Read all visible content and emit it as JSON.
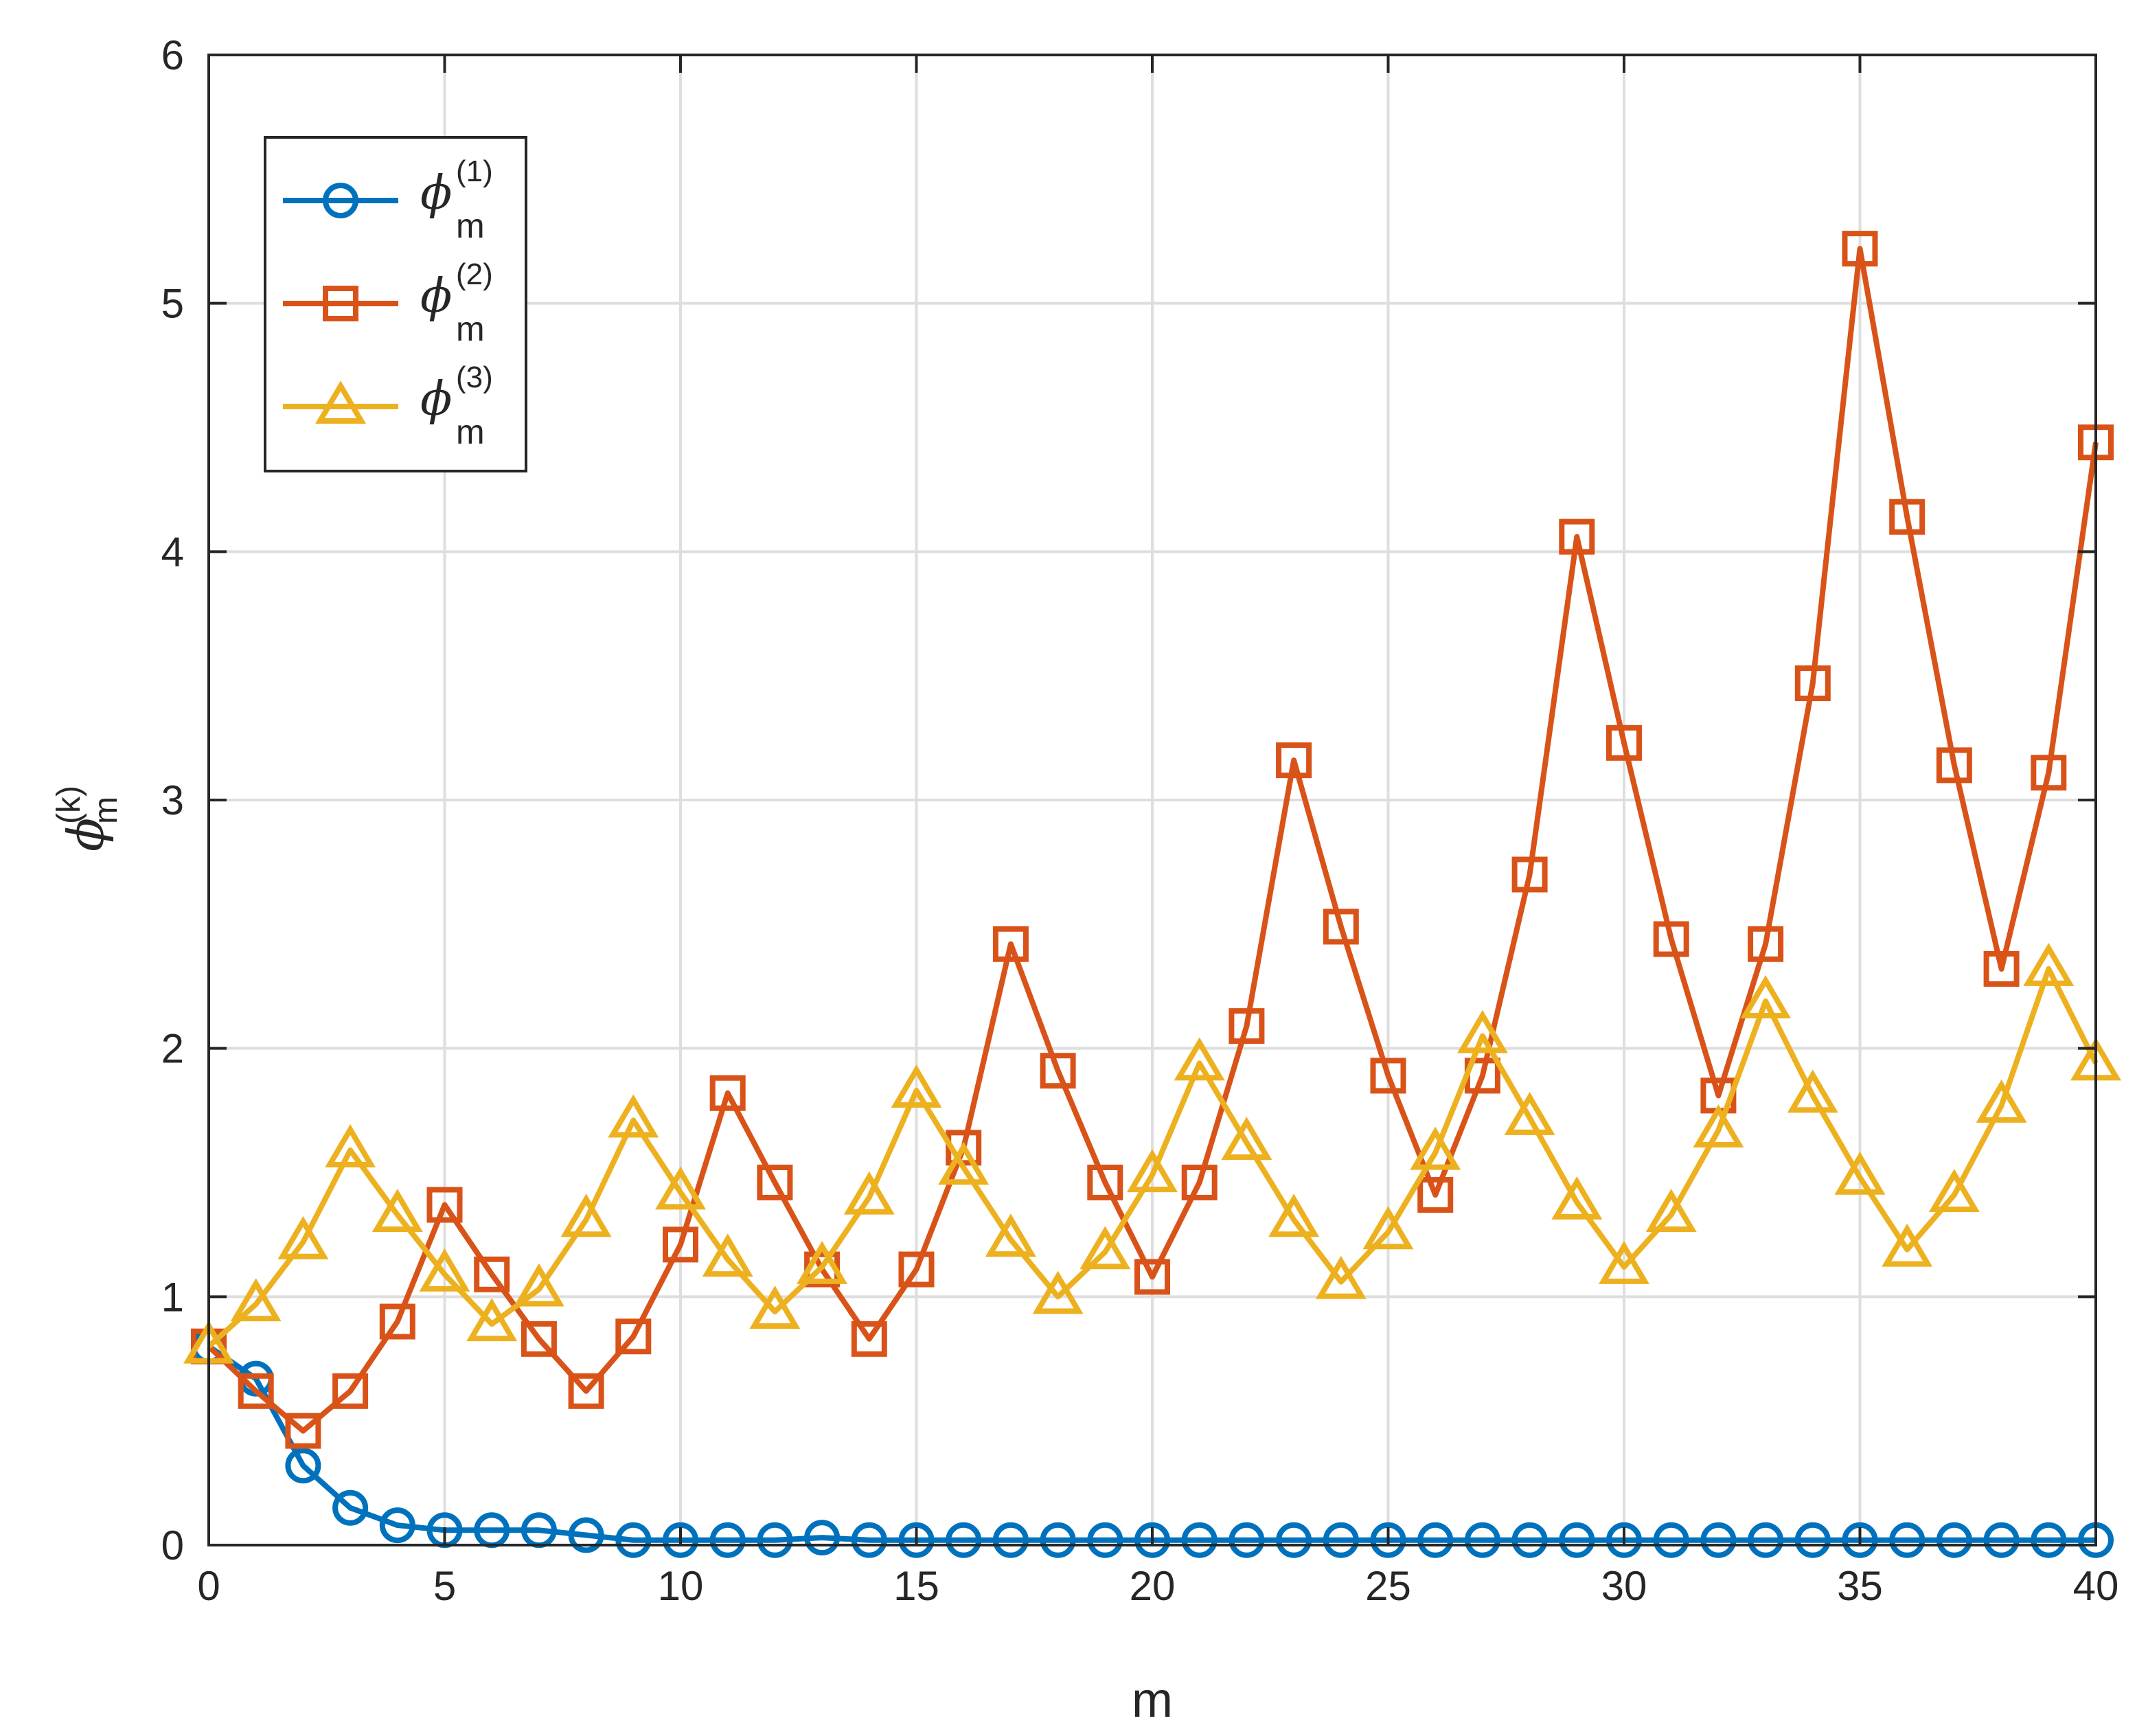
{
  "chart_data": {
    "type": "line",
    "xlabel": "m",
    "ylabel": {
      "symbol": "ϕ",
      "superscript": "(k)",
      "subscript": "m"
    },
    "xlim": [
      0,
      40
    ],
    "ylim": [
      0,
      6
    ],
    "xticks": [
      "0",
      "5",
      "10",
      "15",
      "20",
      "25",
      "30",
      "35",
      "40"
    ],
    "yticks": [
      "0",
      "1",
      "2",
      "3",
      "4",
      "5",
      "6"
    ],
    "grid": true,
    "legend_position": "top-left",
    "x": [
      0,
      1,
      2,
      3,
      4,
      5,
      6,
      7,
      8,
      9,
      10,
      11,
      12,
      13,
      14,
      15,
      16,
      17,
      18,
      19,
      20,
      21,
      22,
      23,
      24,
      25,
      26,
      27,
      28,
      29,
      30,
      31,
      32,
      33,
      34,
      35,
      36,
      37,
      38,
      39,
      40
    ],
    "series": [
      {
        "name": {
          "symbol": "ϕ",
          "superscript": "(1)",
          "subscript": "m"
        },
        "marker": "circle",
        "color": "#0072BD",
        "values": [
          0.8,
          0.67,
          0.32,
          0.15,
          0.08,
          0.06,
          0.06,
          0.06,
          0.04,
          0.02,
          0.02,
          0.02,
          0.02,
          0.03,
          0.02,
          0.02,
          0.02,
          0.02,
          0.02,
          0.02,
          0.02,
          0.02,
          0.02,
          0.02,
          0.02,
          0.02,
          0.02,
          0.02,
          0.02,
          0.02,
          0.02,
          0.02,
          0.02,
          0.02,
          0.02,
          0.02,
          0.02,
          0.02,
          0.02,
          0.02,
          0.02
        ]
      },
      {
        "name": {
          "symbol": "ϕ",
          "superscript": "(2)",
          "subscript": "m"
        },
        "marker": "square",
        "color": "#D95319",
        "values": [
          0.8,
          0.62,
          0.46,
          0.62,
          0.9,
          1.37,
          1.09,
          0.83,
          0.62,
          0.84,
          1.21,
          1.82,
          1.46,
          1.11,
          0.83,
          1.11,
          1.6,
          2.42,
          1.91,
          1.46,
          1.08,
          1.46,
          2.09,
          3.16,
          2.49,
          1.89,
          1.41,
          1.89,
          2.7,
          4.06,
          3.23,
          2.44,
          1.81,
          2.42,
          3.47,
          5.22,
          4.14,
          3.14,
          2.32,
          3.11,
          4.44
        ]
      },
      {
        "name": {
          "symbol": "ϕ",
          "superscript": "(3)",
          "subscript": "m"
        },
        "marker": "triangle",
        "color": "#EDB120",
        "values": [
          0.8,
          0.97,
          1.22,
          1.59,
          1.33,
          1.09,
          0.89,
          1.03,
          1.31,
          1.71,
          1.42,
          1.15,
          0.94,
          1.12,
          1.4,
          1.83,
          1.52,
          1.23,
          1.0,
          1.18,
          1.49,
          1.94,
          1.62,
          1.31,
          1.06,
          1.26,
          1.58,
          2.05,
          1.72,
          1.38,
          1.12,
          1.33,
          1.67,
          2.19,
          1.81,
          1.48,
          1.19,
          1.41,
          1.77,
          2.32,
          1.94
        ]
      }
    ]
  }
}
